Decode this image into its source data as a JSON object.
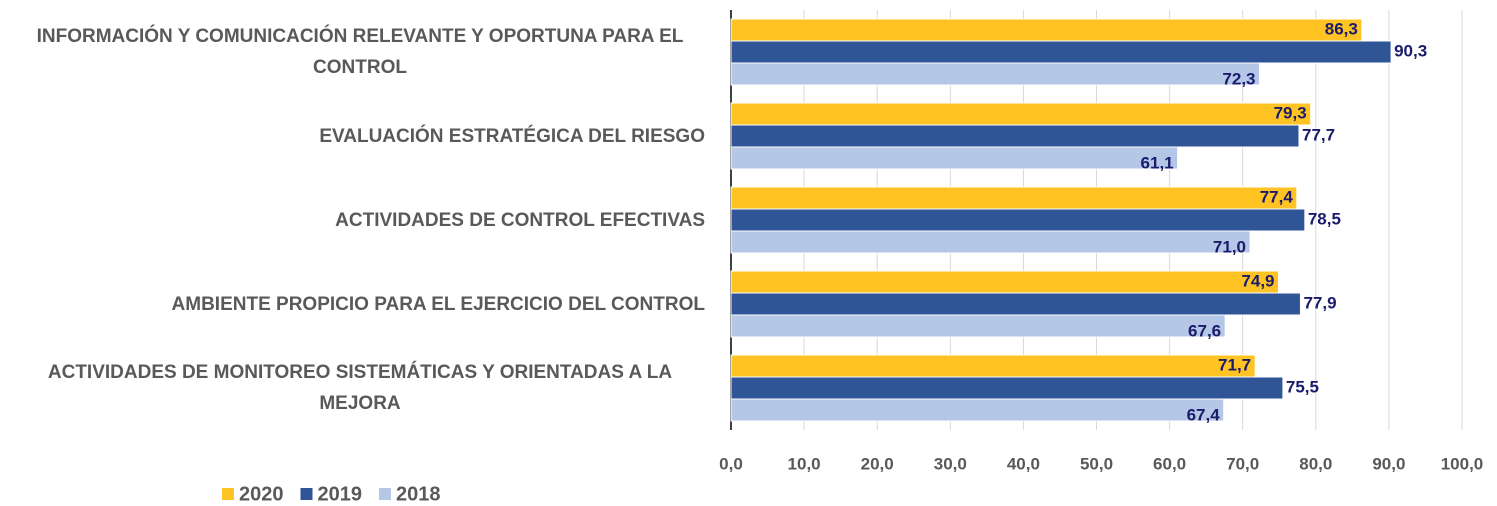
{
  "chart_data": {
    "type": "bar",
    "orientation": "horizontal",
    "categories": [
      "INFORMACIÓN Y COMUNICACIÓN RELEVANTE Y OPORTUNA PARA EL CONTROL",
      "EVALUACIÓN ESTRATÉGICA DEL RIESGO",
      "ACTIVIDADES DE CONTROL EFECTIVAS",
      "AMBIENTE PROPICIO PARA EL EJERCICIO DEL CONTROL",
      "ACTIVIDADES DE MONITOREO SISTEMÁTICAS Y ORIENTADAS A LA MEJORA"
    ],
    "series": [
      {
        "name": "2020",
        "color": "#FFC423",
        "values": [
          86.3,
          79.3,
          77.4,
          74.9,
          71.7
        ],
        "value_labels": [
          "86,3",
          "79,3",
          "77,4",
          "74,9",
          "71,7"
        ]
      },
      {
        "name": "2019",
        "color": "#2F5597",
        "values": [
          90.3,
          77.7,
          78.5,
          77.9,
          75.5
        ],
        "value_labels": [
          "90,3",
          "77,7",
          "78,5",
          "77,9",
          "75,5"
        ]
      },
      {
        "name": "2018",
        "color": "#B4C7E7",
        "values": [
          72.3,
          61.1,
          71.0,
          67.6,
          67.4
        ],
        "value_labels": [
          "72,3",
          "61,1",
          "71,0",
          "67,6",
          "67,4"
        ]
      }
    ],
    "xlim": [
      0,
      100
    ],
    "xticks": [
      {
        "value": 0,
        "label": "0,0"
      },
      {
        "value": 10,
        "label": "10,0"
      },
      {
        "value": 20,
        "label": "20,0"
      },
      {
        "value": 30,
        "label": "30,0"
      },
      {
        "value": 40,
        "label": "40,0"
      },
      {
        "value": 50,
        "label": "50,0"
      },
      {
        "value": 60,
        "label": "60,0"
      },
      {
        "value": 70,
        "label": "70,0"
      },
      {
        "value": 80,
        "label": "80,0"
      },
      {
        "value": 90,
        "label": "90,0"
      },
      {
        "value": 100,
        "label": "100,0"
      }
    ],
    "grid": true,
    "legend": "bottom-left"
  }
}
